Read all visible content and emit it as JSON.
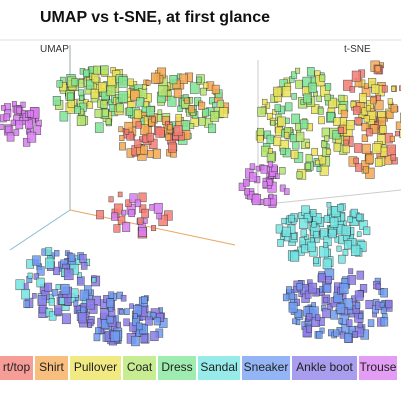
{
  "header": {
    "title": "UMAP vs t-SNE, at first glance"
  },
  "panels": [
    "UMAP",
    "t-SNE"
  ],
  "legend": [
    {
      "label": "rt/top",
      "color": "#f47c74"
    },
    {
      "label": "Shirt",
      "color": "#f6a852"
    },
    {
      "label": "Pullover",
      "color": "#ece35a"
    },
    {
      "label": "Coat",
      "color": "#b4e56e"
    },
    {
      "label": "Dress",
      "color": "#7ee596"
    },
    {
      "label": "Sandal",
      "color": "#74e4e2"
    },
    {
      "label": "Sneaker",
      "color": "#6f9cf2"
    },
    {
      "label": "Ankle boot",
      "color": "#8b7ce8"
    },
    {
      "label": "Trouse",
      "color": "#d97cf0"
    }
  ]
}
